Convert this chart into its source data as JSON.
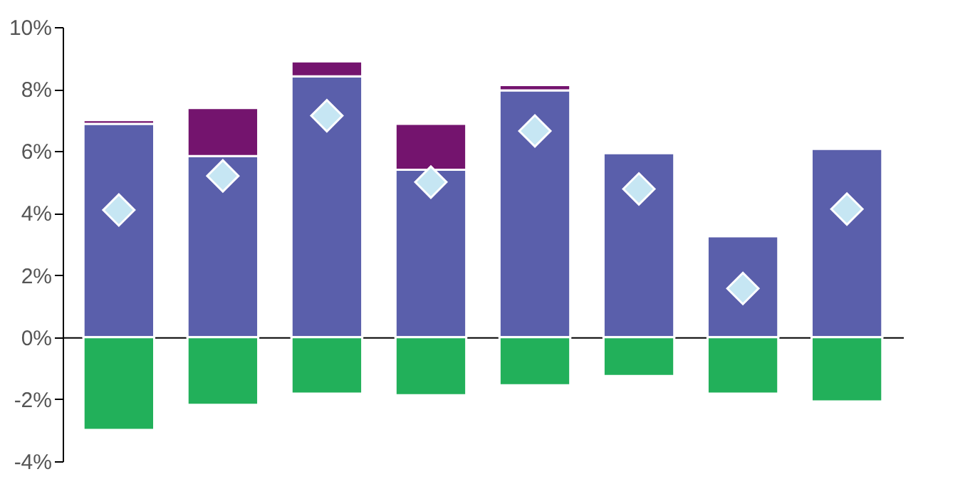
{
  "chart_data": {
    "type": "bar",
    "stacked": true,
    "categories": [
      null,
      null,
      null,
      null,
      null,
      null,
      null,
      null
    ],
    "series": [
      {
        "color": "#5a5fab",
        "values": [
          6.88,
          5.84,
          8.41,
          5.4,
          7.96,
          5.93,
          3.25,
          6.07
        ]
      },
      {
        "color": "#74146e",
        "values": [
          0.12,
          1.55,
          0.48,
          1.48,
          0.17,
          null,
          null,
          null
        ]
      },
      {
        "color": "#22b05a",
        "values": [
          -2.99,
          -2.18,
          -1.82,
          -1.87,
          -1.55,
          -1.25,
          -1.82,
          -2.07
        ]
      },
      {
        "type": "scatter",
        "marker": "diamond",
        "color": "#c6e6f3",
        "values": [
          4.1,
          5.2,
          7.14,
          5.0,
          6.65,
          4.78,
          1.57,
          4.13
        ]
      }
    ],
    "ylim": [
      -4,
      10
    ],
    "yticks": [
      {
        "value": -4,
        "label": "-4%"
      },
      {
        "value": -2,
        "label": "-2%"
      },
      {
        "value": 0,
        "label": "0%"
      },
      {
        "value": 2,
        "label": "2%"
      },
      {
        "value": 4,
        "label": "4%"
      },
      {
        "value": 6,
        "label": "6%"
      },
      {
        "value": 8,
        "label": "8%"
      },
      {
        "value": 10,
        "label": "10%"
      }
    ],
    "tick_labels": "y"
  }
}
